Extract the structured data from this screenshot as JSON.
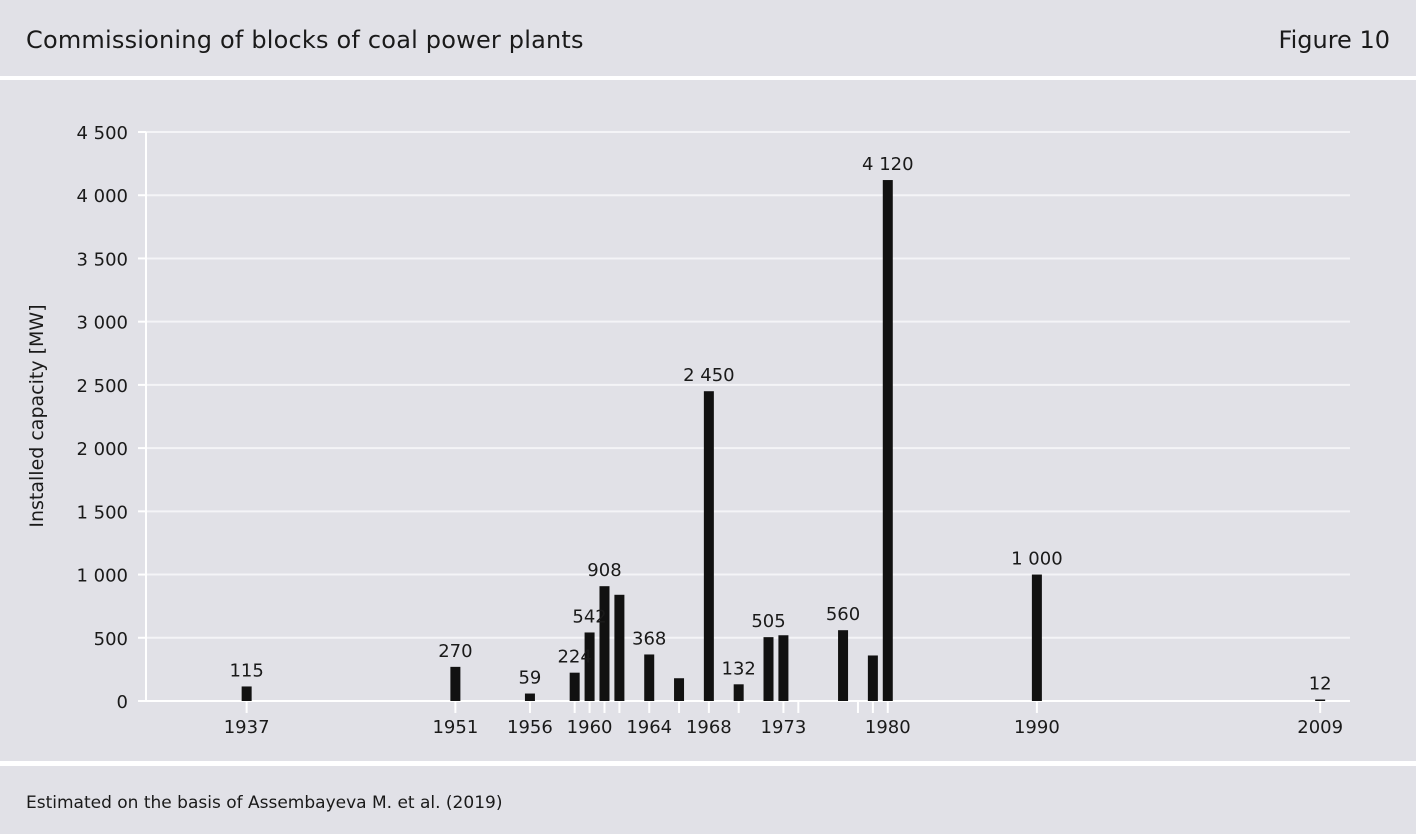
{
  "header": {
    "title": "Commissioning of blocks of coal power plants",
    "figure_label": "Figure 10"
  },
  "footer": {
    "source": "Estimated on the basis of Assembayeva M. et al. (2019)"
  },
  "colors": {
    "panel_background": "#e1e1e7",
    "bar": "#111111",
    "gridline": "#f4f4f7"
  },
  "chart_data": {
    "type": "bar",
    "title": "",
    "xlabel": "",
    "ylabel": "Installed capacity [MW]",
    "ylim": [
      0,
      4500
    ],
    "yticks": [
      0,
      500,
      1000,
      1500,
      2000,
      2500,
      3000,
      3500,
      4000,
      4500
    ],
    "ytick_labels": [
      "0",
      "500",
      "1 000",
      "1 500",
      "2 000",
      "2 500",
      "3 000",
      "3 500",
      "4 000",
      "4 500"
    ],
    "xlim": [
      1930.25,
      2011.0
    ],
    "xticks_labeled": [
      1937,
      1951,
      1956,
      1960,
      1964,
      1968,
      1973,
      1980,
      1990,
      2009
    ],
    "xticks_unlabeled": [
      1959,
      1961,
      1962,
      1966,
      1970,
      1974,
      1978,
      1979
    ],
    "grid": true,
    "legend": "none",
    "bars": [
      {
        "x": 1937,
        "value": 115,
        "label": "115"
      },
      {
        "x": 1951,
        "value": 270,
        "label": "270"
      },
      {
        "x": 1956,
        "value": 59,
        "label": "59"
      },
      {
        "x": 1959,
        "value": 224,
        "label": "224"
      },
      {
        "x": 1960,
        "value": 542,
        "label": "542"
      },
      {
        "x": 1961,
        "value": 908,
        "label": "908"
      },
      {
        "x": 1962,
        "value": 840,
        "label": ""
      },
      {
        "x": 1964,
        "value": 368,
        "label": "368"
      },
      {
        "x": 1966,
        "value": 180,
        "label": ""
      },
      {
        "x": 1968,
        "value": 2450,
        "label": "2 450"
      },
      {
        "x": 1970,
        "value": 132,
        "label": "132"
      },
      {
        "x": 1972,
        "value": 505,
        "label": "505"
      },
      {
        "x": 1973,
        "value": 520,
        "label": ""
      },
      {
        "x": 1977,
        "value": 560,
        "label": "560"
      },
      {
        "x": 1979,
        "value": 360,
        "label": ""
      },
      {
        "x": 1980,
        "value": 4120,
        "label": "4 120"
      },
      {
        "x": 1990,
        "value": 1000,
        "label": "1 000"
      },
      {
        "x": 2009,
        "value": 12,
        "label": "12"
      }
    ]
  }
}
